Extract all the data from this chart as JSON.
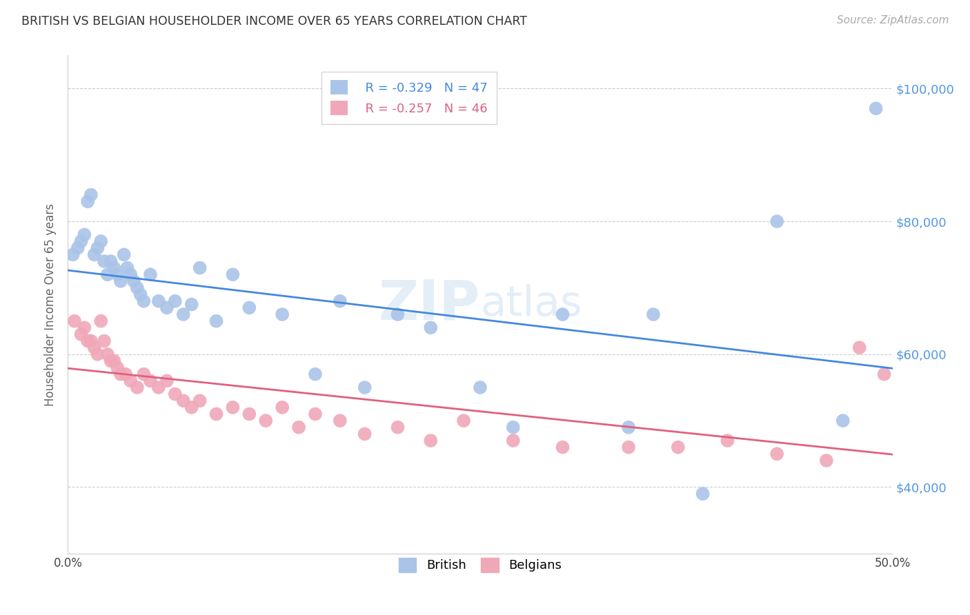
{
  "title": "BRITISH VS BELGIAN HOUSEHOLDER INCOME OVER 65 YEARS CORRELATION CHART",
  "source": "Source: ZipAtlas.com",
  "ylabel": "Householder Income Over 65 years",
  "xlim": [
    0.0,
    0.5
  ],
  "ylim": [
    30000,
    105000
  ],
  "yticks": [
    40000,
    60000,
    80000,
    100000
  ],
  "ytick_labels": [
    "$40,000",
    "$60,000",
    "$80,000",
    "$100,000"
  ],
  "xticks": [
    0.0,
    0.1,
    0.2,
    0.3,
    0.4,
    0.5
  ],
  "xtick_labels": [
    "0.0%",
    "",
    "",
    "",
    "",
    "50.0%"
  ],
  "background_color": "#ffffff",
  "grid_color": "#cccccc",
  "british_color": "#aac4e8",
  "belgian_color": "#f0a8b8",
  "british_line_color": "#4488dd",
  "belgian_line_color": "#e06080",
  "ylabel_color": "#666666",
  "ytick_color": "#5599dd",
  "title_color": "#333333",
  "watermark_zip": "ZIP",
  "watermark_atlas": "atlas",
  "legend_british_r": "R = -0.329",
  "legend_british_n": "N = 47",
  "legend_belgian_r": "R = -0.257",
  "legend_belgian_n": "N = 46",
  "british_x": [
    0.003,
    0.006,
    0.008,
    0.01,
    0.012,
    0.014,
    0.016,
    0.018,
    0.02,
    0.022,
    0.024,
    0.026,
    0.028,
    0.03,
    0.032,
    0.034,
    0.036,
    0.038,
    0.04,
    0.042,
    0.044,
    0.046,
    0.05,
    0.055,
    0.06,
    0.065,
    0.07,
    0.075,
    0.08,
    0.09,
    0.1,
    0.11,
    0.13,
    0.15,
    0.165,
    0.18,
    0.2,
    0.22,
    0.25,
    0.27,
    0.3,
    0.34,
    0.355,
    0.385,
    0.43,
    0.47,
    0.49
  ],
  "british_y": [
    75000,
    76000,
    77000,
    78000,
    83000,
    84000,
    75000,
    76000,
    77000,
    74000,
    72000,
    74000,
    73000,
    72000,
    71000,
    75000,
    73000,
    72000,
    71000,
    70000,
    69000,
    68000,
    72000,
    68000,
    67000,
    68000,
    66000,
    67500,
    73000,
    65000,
    72000,
    67000,
    66000,
    57000,
    68000,
    55000,
    66000,
    64000,
    55000,
    49000,
    66000,
    49000,
    66000,
    39000,
    80000,
    50000,
    97000
  ],
  "belgian_x": [
    0.004,
    0.008,
    0.01,
    0.012,
    0.014,
    0.016,
    0.018,
    0.02,
    0.022,
    0.024,
    0.026,
    0.028,
    0.03,
    0.032,
    0.035,
    0.038,
    0.042,
    0.046,
    0.05,
    0.055,
    0.06,
    0.065,
    0.07,
    0.075,
    0.08,
    0.09,
    0.1,
    0.11,
    0.12,
    0.13,
    0.14,
    0.15,
    0.165,
    0.18,
    0.2,
    0.22,
    0.24,
    0.27,
    0.3,
    0.34,
    0.37,
    0.4,
    0.43,
    0.46,
    0.48,
    0.495
  ],
  "belgian_y": [
    65000,
    63000,
    64000,
    62000,
    62000,
    61000,
    60000,
    65000,
    62000,
    60000,
    59000,
    59000,
    58000,
    57000,
    57000,
    56000,
    55000,
    57000,
    56000,
    55000,
    56000,
    54000,
    53000,
    52000,
    53000,
    51000,
    52000,
    51000,
    50000,
    52000,
    49000,
    51000,
    50000,
    48000,
    49000,
    47000,
    50000,
    47000,
    46000,
    46000,
    46000,
    47000,
    45000,
    44000,
    61000,
    57000
  ]
}
